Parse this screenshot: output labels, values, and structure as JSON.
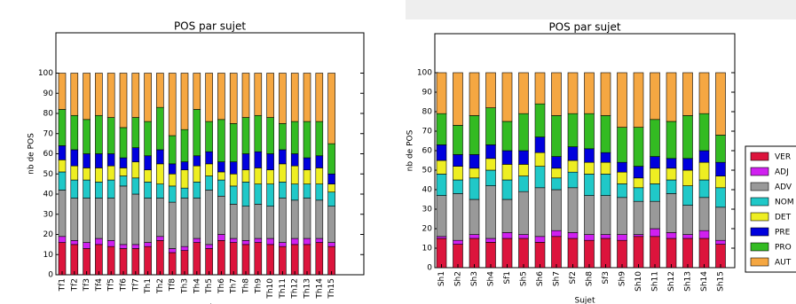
{
  "chart_data": [
    {
      "type": "bar",
      "stacked": true,
      "title": "POS par sujet",
      "xlabel": "Sujet",
      "ylabel": "nb de POS",
      "categories": [
        "Tf1",
        "Tf2",
        "Tf3",
        "Tf4",
        "Tf5",
        "Tf6",
        "Tf7",
        "Th1",
        "Th2",
        "Tf8",
        "Th3",
        "Th4",
        "Th5",
        "Th6",
        "Th7",
        "Th8",
        "Th9",
        "Th10",
        "Th11",
        "Th12",
        "Th13",
        "Th14",
        "Th15"
      ],
      "ylim": [
        0,
        120
      ],
      "yticks": [
        0,
        10,
        20,
        30,
        40,
        50,
        60,
        70,
        80,
        90,
        100
      ],
      "series": [
        {
          "color": "#dc143c",
          "values": [
            16,
            15,
            13,
            15,
            14,
            13,
            13,
            14,
            17,
            11,
            12,
            16,
            13,
            17,
            16,
            15,
            16,
            15,
            14,
            15,
            15,
            16,
            14
          ]
        },
        {
          "color": "#d020f0",
          "values": [
            3,
            2,
            3,
            3,
            3,
            2,
            2,
            2,
            2,
            2,
            2,
            2,
            2,
            3,
            2,
            2,
            2,
            3,
            2,
            3,
            3,
            2,
            2
          ]
        },
        {
          "color": "#999999",
          "values": [
            23,
            21,
            22,
            20,
            21,
            29,
            25,
            22,
            19,
            23,
            24,
            20,
            27,
            19,
            17,
            17,
            17,
            16,
            22,
            19,
            20,
            19,
            18
          ]
        },
        {
          "color": "#20c8c8",
          "values": [
            9,
            9,
            9,
            8,
            9,
            5,
            8,
            8,
            7,
            8,
            5,
            8,
            7,
            8,
            9,
            12,
            10,
            11,
            8,
            8,
            7,
            8,
            7
          ]
        },
        {
          "color": "#eeee22",
          "values": [
            6,
            7,
            6,
            7,
            7,
            4,
            8,
            6,
            10,
            6,
            9,
            8,
            6,
            4,
            6,
            6,
            8,
            7,
            9,
            9,
            7,
            8,
            4
          ]
        },
        {
          "color": "#0000dd",
          "values": [
            7,
            8,
            7,
            7,
            6,
            5,
            7,
            7,
            7,
            5,
            4,
            5,
            6,
            5,
            6,
            8,
            8,
            8,
            7,
            6,
            6,
            6,
            5
          ]
        },
        {
          "color": "#33bb22",
          "values": [
            18,
            17,
            17,
            19,
            18,
            15,
            15,
            17,
            21,
            14,
            16,
            23,
            15,
            21,
            19,
            18,
            18,
            18,
            13,
            16,
            18,
            17,
            15
          ]
        },
        {
          "color": "#f5a742",
          "values": [
            18,
            21,
            23,
            21,
            22,
            27,
            22,
            24,
            17,
            31,
            28,
            18,
            24,
            23,
            25,
            22,
            21,
            22,
            25,
            24,
            24,
            24,
            35
          ]
        }
      ]
    },
    {
      "type": "bar",
      "stacked": true,
      "title": "POS par sujet",
      "xlabel": "Sujet",
      "ylabel": "nb de POS",
      "legend": "right",
      "categories": [
        "Sh1",
        "Sh2",
        "Sh3",
        "Sh4",
        "Sf1",
        "Sh5",
        "Sh6",
        "Sh7",
        "Sf2",
        "Sh8",
        "Sf3",
        "Sh9",
        "Sh10",
        "Sh11",
        "Sh12",
        "Sh13",
        "Sh14",
        "Sh15"
      ],
      "ylim": [
        0,
        120
      ],
      "yticks": [
        0,
        10,
        20,
        30,
        40,
        50,
        60,
        70,
        80,
        90,
        100
      ],
      "series": [
        {
          "name": "VER",
          "color": "#dc143c",
          "values": [
            15,
            12,
            15,
            13,
            15,
            15,
            13,
            16,
            15,
            14,
            15,
            14,
            16,
            16,
            15,
            15,
            15,
            12
          ]
        },
        {
          "name": "ADJ",
          "color": "#d020f0",
          "values": [
            1,
            2,
            2,
            2,
            3,
            2,
            3,
            3,
            3,
            3,
            2,
            3,
            1,
            4,
            3,
            2,
            4,
            2
          ]
        },
        {
          "name": "ADV",
          "color": "#999999",
          "values": [
            21,
            24,
            18,
            27,
            17,
            22,
            25,
            21,
            23,
            20,
            20,
            19,
            17,
            14,
            20,
            15,
            17,
            17
          ]
        },
        {
          "name": "NOM",
          "color": "#20c8c8",
          "values": [
            11,
            7,
            11,
            8,
            10,
            8,
            11,
            6,
            8,
            11,
            11,
            7,
            7,
            9,
            7,
            10,
            9,
            10
          ]
        },
        {
          "name": "DET",
          "color": "#eeee22",
          "values": [
            7,
            7,
            5,
            6,
            8,
            6,
            7,
            5,
            6,
            6,
            6,
            6,
            5,
            8,
            6,
            8,
            9,
            6
          ]
        },
        {
          "name": "PRE",
          "color": "#0000dd",
          "values": [
            8,
            6,
            7,
            7,
            7,
            7,
            8,
            6,
            7,
            7,
            5,
            5,
            6,
            6,
            5,
            6,
            6,
            7
          ]
        },
        {
          "name": "PRO",
          "color": "#33bb22",
          "values": [
            16,
            15,
            20,
            19,
            15,
            19,
            17,
            21,
            17,
            18,
            19,
            18,
            20,
            19,
            19,
            22,
            19,
            14
          ]
        },
        {
          "name": "AUT",
          "color": "#f5a742",
          "values": [
            21,
            27,
            22,
            18,
            25,
            21,
            16,
            22,
            21,
            21,
            22,
            28,
            28,
            24,
            25,
            22,
            21,
            32
          ]
        }
      ]
    }
  ]
}
